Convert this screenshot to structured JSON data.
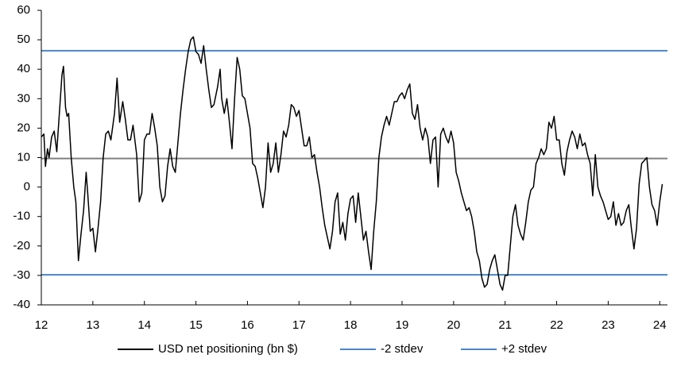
{
  "chart_data": {
    "type": "line",
    "xlim": [
      12,
      24.15
    ],
    "xticks": [
      12,
      13,
      14,
      15,
      16,
      17,
      18,
      19,
      20,
      21,
      22,
      23,
      24
    ],
    "ylim": [
      -40,
      60
    ],
    "yticks": [
      -40,
      -30,
      -20,
      -10,
      0,
      10,
      20,
      30,
      40,
      50,
      60
    ],
    "x": [
      12.0,
      12.05,
      12.08,
      12.12,
      12.15,
      12.2,
      12.25,
      12.3,
      12.35,
      12.4,
      12.43,
      12.47,
      12.5,
      12.53,
      12.58,
      12.63,
      12.67,
      12.72,
      12.77,
      12.82,
      12.87,
      12.9,
      12.95,
      13.0,
      13.05,
      13.1,
      13.15,
      13.2,
      13.25,
      13.3,
      13.35,
      13.42,
      13.47,
      13.52,
      13.58,
      13.63,
      13.68,
      13.73,
      13.78,
      13.85,
      13.9,
      13.95,
      14.0,
      14.05,
      14.1,
      14.15,
      14.2,
      14.25,
      14.3,
      14.35,
      14.4,
      14.45,
      14.5,
      14.55,
      14.6,
      14.65,
      14.7,
      14.75,
      14.8,
      14.85,
      14.9,
      14.95,
      15.0,
      15.05,
      15.1,
      15.15,
      15.2,
      15.25,
      15.3,
      15.35,
      15.42,
      15.47,
      15.5,
      15.55,
      15.6,
      15.65,
      15.7,
      15.75,
      15.8,
      15.85,
      15.9,
      15.95,
      16.0,
      16.05,
      16.1,
      16.15,
      16.2,
      16.25,
      16.3,
      16.35,
      16.4,
      16.45,
      16.5,
      16.55,
      16.6,
      16.65,
      16.7,
      16.75,
      16.8,
      16.85,
      16.9,
      16.95,
      17.0,
      17.05,
      17.1,
      17.15,
      17.2,
      17.25,
      17.3,
      17.35,
      17.4,
      17.45,
      17.5,
      17.55,
      17.6,
      17.65,
      17.7,
      17.75,
      17.8,
      17.85,
      17.9,
      17.95,
      18.0,
      18.05,
      18.1,
      18.15,
      18.2,
      18.25,
      18.3,
      18.35,
      18.4,
      18.45,
      18.5,
      18.55,
      18.6,
      18.65,
      18.7,
      18.75,
      18.8,
      18.85,
      18.9,
      18.95,
      19.0,
      19.05,
      19.1,
      19.15,
      19.2,
      19.25,
      19.3,
      19.35,
      19.4,
      19.45,
      19.5,
      19.55,
      19.6,
      19.65,
      19.7,
      19.75,
      19.8,
      19.85,
      19.9,
      19.95,
      20.0,
      20.05,
      20.1,
      20.15,
      20.2,
      20.25,
      20.3,
      20.35,
      20.4,
      20.45,
      20.5,
      20.55,
      20.6,
      20.65,
      20.7,
      20.75,
      20.8,
      20.85,
      20.9,
      20.95,
      21.0,
      21.05,
      21.1,
      21.15,
      21.2,
      21.25,
      21.3,
      21.35,
      21.4,
      21.45,
      21.5,
      21.55,
      21.6,
      21.65,
      21.7,
      21.75,
      21.8,
      21.85,
      21.9,
      21.95,
      22.0,
      22.05,
      22.1,
      22.15,
      22.2,
      22.25,
      22.3,
      22.35,
      22.4,
      22.45,
      22.5,
      22.55,
      22.6,
      22.65,
      22.7,
      22.75,
      22.8,
      22.85,
      22.9,
      22.95,
      23.0,
      23.05,
      23.1,
      23.15,
      23.2,
      23.25,
      23.3,
      23.35,
      23.4,
      23.45,
      23.5,
      23.55,
      23.6,
      23.65,
      23.7,
      23.75,
      23.8,
      23.85,
      23.9,
      23.95,
      24.0,
      24.05
    ],
    "series": [
      {
        "name": "USD net positioning (bn $)",
        "color": "#000000",
        "values": [
          17,
          18,
          7,
          13,
          10,
          17,
          19,
          12,
          25,
          38,
          41,
          27,
          24,
          25,
          10,
          0,
          -5,
          -25,
          -16,
          -8,
          5,
          -2,
          -15,
          -14,
          -22,
          -14,
          -5,
          10,
          18,
          19,
          16,
          25,
          37,
          22,
          29,
          23,
          16,
          16,
          21,
          11,
          -5,
          -2,
          16,
          18,
          18,
          25,
          20,
          14,
          0,
          -5,
          -3,
          7,
          13,
          7,
          5,
          15,
          25,
          33,
          40,
          46,
          50,
          51,
          46,
          45,
          42,
          48,
          40,
          33,
          27,
          28,
          34,
          40,
          30,
          25,
          30,
          22,
          13,
          30,
          44,
          40,
          31,
          30,
          25,
          20,
          8,
          7,
          3,
          -2,
          -7,
          0,
          15,
          5,
          8,
          15,
          5,
          11,
          19,
          17,
          21,
          28,
          27,
          24,
          26,
          20,
          14,
          14,
          17,
          10,
          11,
          5,
          0,
          -7,
          -13,
          -17,
          -21,
          -15,
          -5,
          -2,
          -16,
          -12,
          -18,
          -9,
          -4,
          -3,
          -12,
          -2,
          -10,
          -18,
          -15,
          -22,
          -28,
          -15,
          -5,
          10,
          17,
          21,
          24,
          21,
          25,
          29,
          29,
          31,
          32,
          30,
          33,
          35,
          25,
          23,
          28,
          20,
          16,
          20,
          17,
          8,
          16,
          17,
          0,
          18,
          20,
          17,
          15,
          19,
          15,
          5,
          2,
          -2,
          -5,
          -8,
          -7,
          -10,
          -15,
          -22,
          -25,
          -31,
          -34,
          -33,
          -28,
          -25,
          -23,
          -28,
          -33,
          -35,
          -30,
          -30,
          -20,
          -10,
          -6,
          -13,
          -16,
          -18,
          -12,
          -5,
          -1,
          0,
          8,
          10,
          13,
          11,
          13,
          22,
          20,
          24,
          16,
          16,
          8,
          4,
          12,
          16,
          19,
          17,
          13,
          18,
          14,
          15,
          11,
          8,
          -3,
          11,
          0,
          -3,
          -5,
          -8,
          -11,
          -10,
          -5,
          -13,
          -9,
          -13,
          -12,
          -8,
          -6,
          -14,
          -21,
          -14,
          1,
          8,
          9,
          10,
          0,
          -6,
          -8,
          -13,
          -5,
          1
        ]
      }
    ],
    "reference_lines": [
      {
        "value": 9.7,
        "color": "#808080"
      },
      {
        "name": "-2 stdev",
        "value": -29.8,
        "color": "#4a86c5"
      },
      {
        "name": "+2 stdev",
        "value": 46.3,
        "color": "#4a86c5"
      }
    ]
  }
}
